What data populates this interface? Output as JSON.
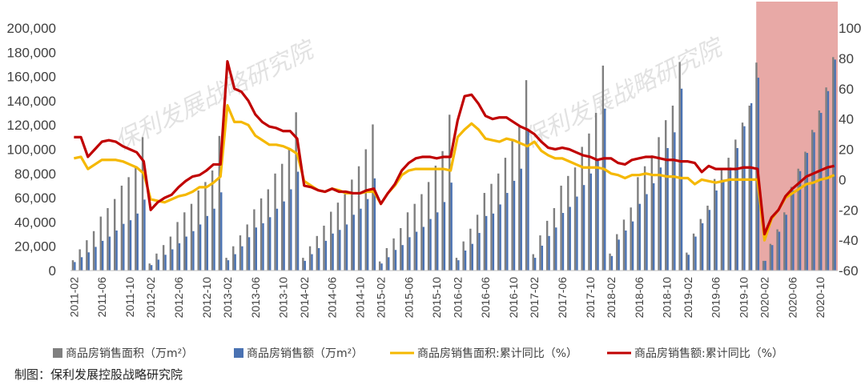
{
  "chart_data": {
    "type": "bar",
    "source_label": "制图：保利发展控股战略研究院",
    "watermark": "保利发展战略研究院",
    "highlight_period": [
      "2020-02",
      "2020-12"
    ],
    "colors": {
      "area_bar": "#7f7f7f",
      "amount_bar": "#4a72b2",
      "area_yoy": "#f5b800",
      "amount_yoy": "#c00000",
      "highlight": "#e8a9a6"
    },
    "y_left": {
      "min": 0,
      "max": 200000,
      "ticks": [
        "0",
        "20,000",
        "40,000",
        "60,000",
        "80,000",
        "100,000",
        "120,000",
        "140,000",
        "160,000",
        "180,000",
        "200,000"
      ]
    },
    "y_right": {
      "min": -60,
      "max": 100,
      "ticks": [
        "-60",
        "-40",
        "-20",
        "0",
        "20",
        "40",
        "60",
        "80",
        "100"
      ]
    },
    "x_tick_labels": [
      "2011-02",
      "2011-06",
      "2011-10",
      "2012-02",
      "2012-06",
      "2012-10",
      "2013-02",
      "2013-06",
      "2013-10",
      "2014-02",
      "2014-06",
      "2014-10",
      "2015-02",
      "2015-06",
      "2015-10",
      "2016-02",
      "2016-06",
      "2016-10",
      "2017-02",
      "2017-06",
      "2017-10",
      "2018-02",
      "2018-06",
      "2018-10",
      "2019-02",
      "2019-06",
      "2019-10",
      "2020-02",
      "2020-06",
      "2020-10"
    ],
    "legend": [
      {
        "label": "商品房销售面积（万m²）",
        "kind": "bar",
        "color_key": "area_bar"
      },
      {
        "label": "商品房销售额（万m²）",
        "kind": "bar",
        "color_key": "amount_bar"
      },
      {
        "label": "商品房销售面积:累计同比（%）",
        "kind": "line",
        "color_key": "area_yoy"
      },
      {
        "label": "商品房销售额:累计同比（%）",
        "kind": "line",
        "color_key": "amount_yoy"
      }
    ],
    "categories": [
      "2011-02",
      "2011-03",
      "2011-04",
      "2011-05",
      "2011-06",
      "2011-07",
      "2011-08",
      "2011-09",
      "2011-10",
      "2011-11",
      "2011-12",
      "2012-02",
      "2012-03",
      "2012-04",
      "2012-05",
      "2012-06",
      "2012-07",
      "2012-08",
      "2012-09",
      "2012-10",
      "2012-11",
      "2012-12",
      "2013-02",
      "2013-03",
      "2013-04",
      "2013-05",
      "2013-06",
      "2013-07",
      "2013-08",
      "2013-09",
      "2013-10",
      "2013-11",
      "2013-12",
      "2014-02",
      "2014-03",
      "2014-04",
      "2014-05",
      "2014-06",
      "2014-07",
      "2014-08",
      "2014-09",
      "2014-10",
      "2014-11",
      "2014-12",
      "2015-02",
      "2015-03",
      "2015-04",
      "2015-05",
      "2015-06",
      "2015-07",
      "2015-08",
      "2015-09",
      "2015-10",
      "2015-11",
      "2015-12",
      "2016-02",
      "2016-03",
      "2016-04",
      "2016-05",
      "2016-06",
      "2016-07",
      "2016-08",
      "2016-09",
      "2016-10",
      "2016-11",
      "2016-12",
      "2017-02",
      "2017-03",
      "2017-04",
      "2017-05",
      "2017-06",
      "2017-07",
      "2017-08",
      "2017-09",
      "2017-10",
      "2017-11",
      "2017-12",
      "2018-02",
      "2018-03",
      "2018-04",
      "2018-05",
      "2018-06",
      "2018-07",
      "2018-08",
      "2018-09",
      "2018-10",
      "2018-11",
      "2018-12",
      "2019-02",
      "2019-03",
      "2019-04",
      "2019-05",
      "2019-06",
      "2019-07",
      "2019-08",
      "2019-09",
      "2019-10",
      "2019-11",
      "2019-12",
      "2020-02",
      "2020-03",
      "2020-04",
      "2020-05",
      "2020-06",
      "2020-07",
      "2020-08",
      "2020-09",
      "2020-10",
      "2020-11",
      "2020-12"
    ],
    "series": [
      {
        "name": "商品房销售面积（万m²）",
        "kind": "bar",
        "color_key": "area_bar",
        "values": [
          8500,
          17500,
          25000,
          32500,
          44500,
          51500,
          59000,
          70000,
          77000,
          86000,
          110000,
          5800,
          14000,
          21000,
          28000,
          40000,
          48000,
          55000,
          66000,
          73000,
          82500,
          111000,
          10500,
          20000,
          29000,
          38000,
          50500,
          59500,
          67000,
          80000,
          88000,
          100500,
          130500,
          10500,
          20000,
          28500,
          37000,
          48500,
          56000,
          63000,
          75000,
          86000,
          100000,
          120500,
          7500,
          18500,
          26500,
          35000,
          48000,
          55000,
          63000,
          73000,
          86500,
          98500,
          128500,
          10500,
          24000,
          34500,
          46000,
          64000,
          71500,
          80000,
          93000,
          108000,
          120000,
          157000,
          13500,
          29000,
          41000,
          51500,
          70000,
          78000,
          85000,
          102000,
          113000,
          130000,
          169000,
          14000,
          30000,
          42000,
          52000,
          77000,
          86000,
          95000,
          110000,
          124000,
          136000,
          172000,
          14800,
          30500,
          42500,
          53500,
          75500,
          83500,
          93000,
          108000,
          122000,
          136000,
          171500,
          8000,
          22000,
          34000,
          48000,
          69000,
          84000,
          98000,
          116000,
          132000,
          151000,
          176000
        ]
      },
      {
        "name": "商品房销售额（万m²）",
        "kind": "bar",
        "color_key": "amount_bar",
        "values": [
          7000,
          11000,
          15000,
          19500,
          24500,
          28000,
          33000,
          38500,
          41500,
          47000,
          58500,
          4500,
          9000,
          13000,
          17500,
          22500,
          28000,
          32500,
          38000,
          45000,
          51000,
          64500,
          8500,
          13500,
          20000,
          27500,
          35500,
          39000,
          44000,
          51000,
          57000,
          67000,
          81500,
          8000,
          13500,
          18500,
          24500,
          30500,
          33500,
          38000,
          46000,
          51000,
          59000,
          76000,
          5800,
          11000,
          17000,
          21000,
          27500,
          32000,
          36000,
          42500,
          48000,
          56500,
          72500,
          8500,
          16500,
          22000,
          31000,
          45000,
          47000,
          54500,
          64000,
          74000,
          84000,
          117000,
          10500,
          20500,
          28500,
          35500,
          47500,
          52500,
          61000,
          70500,
          80000,
          90500,
          133500,
          12000,
          25500,
          33000,
          40500,
          55000,
          63000,
          72000,
          85000,
          101000,
          114000,
          150000,
          13000,
          28000,
          39000,
          50000,
          66000,
          75000,
          85000,
          101000,
          119000,
          138000,
          159000,
          8000,
          21000,
          32000,
          46000,
          66000,
          82000,
          97000,
          114000,
          130000,
          148000,
          174000
        ]
      },
      {
        "name": "商品房销售面积:累计同比（%）",
        "kind": "line",
        "color_key": "area_yoy",
        "axis": "right",
        "values": [
          14,
          15,
          7,
          10,
          13,
          13,
          13,
          12,
          10,
          8,
          4,
          -13,
          -14,
          -15,
          -13,
          -11,
          -10,
          -8,
          -5,
          -5,
          -2,
          2,
          49,
          38,
          38,
          36,
          29,
          26,
          23,
          23,
          22,
          20,
          17,
          -1,
          -4,
          -7,
          -8,
          -6,
          -7,
          -9,
          -9,
          -9,
          -8,
          -8,
          -16,
          -9,
          -4,
          3,
          6,
          7,
          7,
          7,
          7,
          7,
          6,
          28,
          33,
          37,
          33,
          27,
          26,
          25,
          27,
          26,
          24,
          22,
          25,
          19,
          16,
          14,
          14,
          12,
          10,
          8,
          8,
          8,
          7,
          4,
          3,
          1,
          3,
          3,
          4,
          3,
          3,
          2,
          2,
          1,
          1,
          -3,
          0,
          -1,
          -2,
          -1,
          0,
          0,
          0,
          0,
          0,
          -40,
          -26,
          -20,
          -12,
          -9,
          -6,
          -3,
          -2,
          0,
          1,
          3
        ]
      },
      {
        "name": "商品房销售额:累计同比（%）",
        "kind": "line",
        "color_key": "amount_yoy",
        "axis": "right",
        "values": [
          28,
          28,
          15,
          20,
          25,
          26,
          25,
          22,
          20,
          18,
          12,
          -20,
          -15,
          -12,
          -10,
          -5,
          -1,
          2,
          3,
          6,
          10,
          10,
          78,
          60,
          58,
          52,
          43,
          38,
          35,
          34,
          32,
          32,
          27,
          -4,
          -5,
          -7,
          -8,
          -6,
          -8,
          -8,
          -9,
          -9,
          -7,
          -6,
          -16,
          -9,
          -3,
          6,
          11,
          14,
          15,
          15,
          14,
          15,
          15,
          39,
          55,
          56,
          50,
          42,
          40,
          41,
          41,
          38,
          35,
          33,
          30,
          25,
          21,
          20,
          21,
          20,
          18,
          16,
          15,
          13,
          14,
          14,
          11,
          10,
          13,
          14,
          15,
          15,
          14,
          13,
          13,
          12,
          12,
          11,
          5,
          9,
          7,
          7,
          7,
          7,
          8,
          8,
          7,
          -36,
          -25,
          -20,
          -11,
          -6,
          -2,
          2,
          4,
          6,
          8,
          9
        ]
      }
    ]
  }
}
